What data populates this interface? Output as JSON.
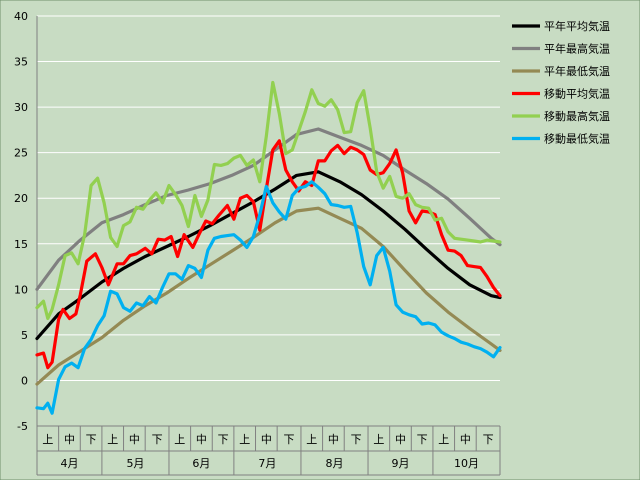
{
  "chart_data": {
    "type": "line",
    "ylim": [
      -5,
      40
    ],
    "yticks": [
      -5,
      0,
      5,
      10,
      15,
      20,
      25,
      30,
      35,
      40
    ],
    "grid": true,
    "legend_position": "right",
    "xlim": [
      0,
      214
    ],
    "months": [
      "4月",
      "5月",
      "6月",
      "7月",
      "8月",
      "9月",
      "10月"
    ],
    "month_days": [
      30,
      31,
      30,
      31,
      31,
      30,
      31
    ],
    "subperiods": [
      "上",
      "中",
      "下"
    ],
    "series": [
      {
        "name": "平年平均気温",
        "color": "#000000",
        "x": [
          0,
          10,
          20,
          30,
          40,
          50,
          60,
          70,
          80,
          90,
          100,
          110,
          120,
          130,
          140,
          150,
          160,
          170,
          180,
          190,
          200,
          210,
          214
        ],
        "y": [
          4.6,
          7.3,
          9.0,
          10.8,
          12.3,
          13.6,
          14.7,
          15.8,
          17.0,
          18.3,
          19.6,
          21.0,
          22.5,
          22.9,
          21.8,
          20.4,
          18.6,
          16.6,
          14.4,
          12.3,
          10.5,
          9.3,
          9.1
        ]
      },
      {
        "name": "平年最高気温",
        "color": "#808080",
        "x": [
          0,
          10,
          20,
          30,
          40,
          50,
          60,
          70,
          80,
          90,
          100,
          110,
          120,
          130,
          140,
          150,
          160,
          170,
          180,
          190,
          200,
          210,
          214
        ],
        "y": [
          10.0,
          13.2,
          15.4,
          17.3,
          18.2,
          19.3,
          20.3,
          20.9,
          21.6,
          22.5,
          23.6,
          25.3,
          27.0,
          27.6,
          26.7,
          25.8,
          24.7,
          23.1,
          21.6,
          19.9,
          17.8,
          15.6,
          14.9
        ]
      },
      {
        "name": "平年最低気温",
        "color": "#948a54",
        "x": [
          0,
          10,
          20,
          30,
          40,
          50,
          60,
          70,
          80,
          90,
          100,
          110,
          120,
          130,
          140,
          150,
          160,
          170,
          180,
          190,
          200,
          210,
          214
        ],
        "y": [
          -0.4,
          1.7,
          3.2,
          4.7,
          6.6,
          8.2,
          9.6,
          11.2,
          12.7,
          14.2,
          15.7,
          17.3,
          18.6,
          18.9,
          17.8,
          16.7,
          14.7,
          12.1,
          9.6,
          7.5,
          5.7,
          4.0,
          3.3
        ]
      },
      {
        "name": "移動平均気温",
        "color": "#ff0000",
        "x": [
          0,
          3,
          5,
          7,
          10,
          12,
          15,
          18,
          20,
          23,
          27,
          30,
          33,
          37,
          40,
          43,
          46,
          50,
          53,
          56,
          59,
          62,
          65,
          68,
          72,
          75,
          78,
          81,
          84,
          88,
          91,
          94,
          97,
          100,
          103,
          106,
          109,
          112,
          115,
          118,
          121,
          124,
          127,
          130,
          133,
          136,
          139,
          142,
          145,
          148,
          151,
          154,
          157,
          160,
          163,
          166,
          169,
          172,
          175,
          178,
          181,
          184,
          187,
          190,
          193,
          196,
          199,
          202,
          205,
          208,
          211,
          214
        ],
        "y": [
          2.8,
          3.0,
          1.4,
          2.0,
          6.7,
          7.8,
          6.8,
          7.3,
          9.4,
          13.1,
          13.9,
          12.4,
          10.5,
          12.8,
          12.8,
          13.7,
          13.9,
          14.5,
          13.9,
          15.5,
          15.4,
          15.8,
          13.6,
          16.0,
          14.6,
          16.1,
          17.5,
          17.2,
          18.1,
          19.2,
          17.7,
          20.0,
          20.3,
          19.6,
          16.5,
          21.0,
          25.3,
          26.3,
          23.1,
          21.8,
          20.8,
          21.8,
          21.4,
          24.1,
          24.1,
          25.2,
          25.8,
          24.9,
          25.6,
          25.3,
          24.8,
          23.1,
          22.6,
          22.8,
          23.8,
          25.3,
          22.8,
          18.6,
          17.3,
          18.6,
          18.5,
          18.2,
          16.0,
          14.3,
          14.2,
          13.7,
          12.6,
          12.5,
          12.4,
          11.4,
          10.2,
          9.3
        ]
      },
      {
        "name": "移動最高気温",
        "color": "#92d050",
        "x": [
          0,
          3,
          5,
          7,
          10,
          13,
          16,
          19,
          22,
          25,
          28,
          31,
          34,
          37,
          40,
          43,
          46,
          49,
          52,
          55,
          58,
          61,
          64,
          67,
          70,
          73,
          76,
          79,
          82,
          85,
          88,
          91,
          94,
          97,
          100,
          103,
          106,
          109,
          112,
          115,
          118,
          121,
          124,
          127,
          130,
          133,
          136,
          139,
          142,
          145,
          148,
          151,
          154,
          157,
          160,
          163,
          166,
          169,
          172,
          175,
          178,
          181,
          184,
          187,
          190,
          193,
          196,
          199,
          202,
          205,
          208,
          211,
          214
        ],
        "y": [
          8.0,
          8.7,
          6.8,
          7.8,
          10.5,
          13.7,
          14.0,
          12.8,
          16.0,
          21.4,
          22.2,
          19.5,
          15.7,
          14.7,
          17.0,
          17.4,
          19.0,
          18.8,
          19.8,
          20.6,
          19.5,
          21.4,
          20.4,
          19.2,
          16.9,
          20.3,
          18.0,
          19.8,
          23.7,
          23.6,
          23.8,
          24.4,
          24.7,
          23.6,
          24.2,
          21.8,
          26.8,
          32.7,
          29.3,
          24.9,
          25.3,
          27.4,
          29.5,
          31.9,
          30.4,
          30.1,
          30.8,
          29.7,
          27.2,
          27.3,
          30.5,
          31.8,
          27.7,
          22.9,
          21.1,
          22.4,
          20.2,
          20.0,
          20.5,
          19.3,
          19.0,
          18.9,
          17.6,
          17.8,
          16.3,
          15.6,
          15.5,
          15.4,
          15.3,
          15.2,
          15.4,
          15.3,
          15.2
        ]
      },
      {
        "name": "移動最低気温",
        "color": "#00b0f0",
        "x": [
          0,
          3,
          5,
          7,
          10,
          13,
          16,
          19,
          22,
          25,
          28,
          31,
          34,
          37,
          40,
          43,
          46,
          49,
          52,
          55,
          58,
          61,
          64,
          67,
          70,
          73,
          76,
          79,
          82,
          85,
          88,
          91,
          94,
          97,
          100,
          103,
          106,
          109,
          112,
          115,
          118,
          121,
          124,
          127,
          130,
          133,
          136,
          139,
          142,
          145,
          148,
          151,
          154,
          157,
          160,
          163,
          166,
          169,
          172,
          175,
          178,
          181,
          184,
          187,
          190,
          193,
          196,
          199,
          202,
          205,
          208,
          211,
          214
        ],
        "y": [
          -3.0,
          -3.1,
          -2.5,
          -3.6,
          0.1,
          1.5,
          1.9,
          1.4,
          3.5,
          4.5,
          6.0,
          7.1,
          9.8,
          9.5,
          8.0,
          7.6,
          8.5,
          8.2,
          9.2,
          8.5,
          10.2,
          11.7,
          11.7,
          11.1,
          12.6,
          12.3,
          11.3,
          14.3,
          15.6,
          15.8,
          15.9,
          16.0,
          15.4,
          14.6,
          15.8,
          18.2,
          21.3,
          19.5,
          18.5,
          17.7,
          20.3,
          21.1,
          21.3,
          21.8,
          21.2,
          20.5,
          19.3,
          19.2,
          19.0,
          19.1,
          16.2,
          12.5,
          10.5,
          13.7,
          14.6,
          12.0,
          8.3,
          7.5,
          7.2,
          7.0,
          6.2,
          6.3,
          6.1,
          5.3,
          4.9,
          4.6,
          4.2,
          4.0,
          3.7,
          3.5,
          3.1,
          2.6,
          3.6
        ]
      }
    ]
  }
}
